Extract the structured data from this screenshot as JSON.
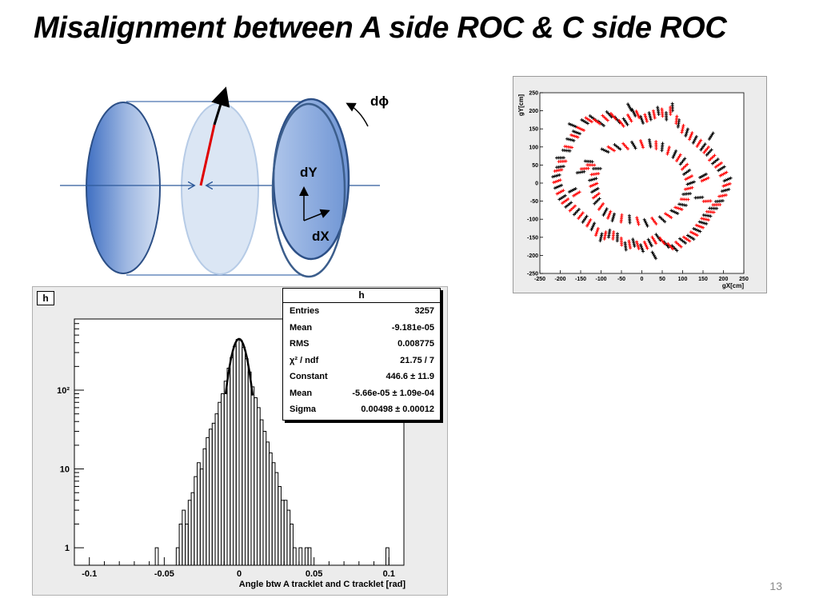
{
  "slide": {
    "title": "Misalignment between A side ROC & C side ROC",
    "page_number": "13"
  },
  "diagram": {
    "label_dphi": "dϕ",
    "label_dy": "dY",
    "label_dx": "dX"
  },
  "colors": {
    "ellipse_dark": "#5b84cc",
    "ellipse_light": "#dbe6f4",
    "outline": "#3c5e8c",
    "vector_red": "#e00000",
    "series_black": "#000000",
    "series_red": "#ff0000"
  },
  "histogram": {
    "name": "h",
    "xlabel": "Angle btw A tracklet and C tracklet [rad]",
    "log_y": true,
    "stats": {
      "title": "h",
      "rows": [
        {
          "label": "Entries",
          "value": "3257"
        },
        {
          "label": "Mean",
          "value": "-9.181e-05"
        },
        {
          "label": "RMS",
          "value": "0.008775"
        },
        {
          "label": "χ² / ndf",
          "value": "21.75 / 7"
        },
        {
          "label": "Constant",
          "value": "446.6 ± 11.9"
        },
        {
          "label": "Mean",
          "value": "-5.66e-05 ± 1.09e-04"
        },
        {
          "label": "Sigma",
          "value": "0.00498 ± 0.00012"
        }
      ]
    }
  },
  "chart_data": [
    {
      "type": "bar",
      "xlabel": "Angle btw A tracklet and C tracklet [rad]",
      "ylabel": "",
      "xlim": [
        -0.11,
        0.11
      ],
      "ylim": [
        0.6,
        800
      ],
      "log_y": true,
      "x_ticks": [
        -0.1,
        -0.05,
        0,
        0.05,
        0.1
      ],
      "x_tick_labels": [
        "-0.1",
        "-0.05",
        "0",
        "0.05",
        "0.1"
      ],
      "y_ticks": [
        1,
        10,
        100
      ],
      "y_tick_labels": [
        "1",
        "10",
        "10²"
      ],
      "bin_width": 0.002,
      "bins": [
        {
          "x": -0.055,
          "y": 1
        },
        {
          "x": -0.041,
          "y": 1
        },
        {
          "x": -0.039,
          "y": 2
        },
        {
          "x": -0.037,
          "y": 3
        },
        {
          "x": -0.035,
          "y": 2
        },
        {
          "x": -0.033,
          "y": 4
        },
        {
          "x": -0.031,
          "y": 5
        },
        {
          "x": -0.029,
          "y": 8
        },
        {
          "x": -0.027,
          "y": 12
        },
        {
          "x": -0.025,
          "y": 10
        },
        {
          "x": -0.023,
          "y": 18
        },
        {
          "x": -0.021,
          "y": 25
        },
        {
          "x": -0.019,
          "y": 32
        },
        {
          "x": -0.017,
          "y": 38
        },
        {
          "x": -0.015,
          "y": 50
        },
        {
          "x": -0.013,
          "y": 70
        },
        {
          "x": -0.011,
          "y": 90
        },
        {
          "x": -0.009,
          "y": 130
        },
        {
          "x": -0.007,
          "y": 190
        },
        {
          "x": -0.005,
          "y": 260
        },
        {
          "x": -0.003,
          "y": 360
        },
        {
          "x": -0.001,
          "y": 440
        },
        {
          "x": 0.001,
          "y": 430
        },
        {
          "x": 0.003,
          "y": 350
        },
        {
          "x": 0.005,
          "y": 250
        },
        {
          "x": 0.007,
          "y": 170
        },
        {
          "x": 0.009,
          "y": 110
        },
        {
          "x": 0.011,
          "y": 80
        },
        {
          "x": 0.013,
          "y": 60
        },
        {
          "x": 0.015,
          "y": 42
        },
        {
          "x": 0.017,
          "y": 30
        },
        {
          "x": 0.019,
          "y": 22
        },
        {
          "x": 0.021,
          "y": 16
        },
        {
          "x": 0.023,
          "y": 12
        },
        {
          "x": 0.025,
          "y": 9
        },
        {
          "x": 0.027,
          "y": 6
        },
        {
          "x": 0.029,
          "y": 4
        },
        {
          "x": 0.031,
          "y": 4
        },
        {
          "x": 0.033,
          "y": 3
        },
        {
          "x": 0.035,
          "y": 2
        },
        {
          "x": 0.037,
          "y": 1
        },
        {
          "x": 0.041,
          "y": 1
        },
        {
          "x": 0.045,
          "y": 1
        },
        {
          "x": 0.047,
          "y": 1
        },
        {
          "x": 0.099,
          "y": 1
        }
      ],
      "fit": {
        "type": "gaussian",
        "constant": 446.6,
        "mean": -5.66e-05,
        "sigma": 0.00498,
        "range": [
          -0.009,
          0.009
        ]
      }
    },
    {
      "type": "scatter",
      "xlabel": "gX[cm]",
      "ylabel": "gY[cm]",
      "xlim": [
        -250,
        250
      ],
      "ylim": [
        -250,
        250
      ],
      "x_ticks": [
        -250,
        -200,
        -150,
        -100,
        -50,
        0,
        50,
        100,
        150,
        200,
        250
      ],
      "y_ticks": [
        -250,
        -200,
        -150,
        -100,
        -50,
        0,
        50,
        100,
        150,
        200,
        250
      ],
      "series": [
        {
          "color": "#000000",
          "points": [
            [
              -200,
              70
            ],
            [
              -185,
              90
            ],
            [
              -175,
              120
            ],
            [
              -160,
              140
            ],
            [
              -140,
              170
            ],
            [
              -120,
              180
            ],
            [
              -100,
              165
            ],
            [
              -80,
              190
            ],
            [
              -60,
              175
            ],
            [
              -40,
              170
            ],
            [
              -20,
              195
            ],
            [
              0,
              175
            ],
            [
              20,
              185
            ],
            [
              40,
              200
            ],
            [
              60,
              185
            ],
            [
              75,
              210
            ],
            [
              90,
              165
            ],
            [
              110,
              140
            ],
            [
              130,
              120
            ],
            [
              150,
              100
            ],
            [
              165,
              85
            ],
            [
              180,
              60
            ],
            [
              195,
              40
            ],
            [
              210,
              10
            ],
            [
              205,
              -20
            ],
            [
              190,
              -50
            ],
            [
              175,
              -70
            ],
            [
              160,
              -90
            ],
            [
              150,
              -110
            ],
            [
              135,
              -130
            ],
            [
              120,
              -150
            ],
            [
              100,
              -160
            ],
            [
              80,
              -180
            ],
            [
              60,
              -170
            ],
            [
              40,
              -150
            ],
            [
              20,
              -165
            ],
            [
              0,
              -180
            ],
            [
              -20,
              -165
            ],
            [
              -40,
              -175
            ],
            [
              -60,
              -150
            ],
            [
              -80,
              -140
            ],
            [
              -100,
              -150
            ],
            [
              -120,
              -120
            ],
            [
              -140,
              -100
            ],
            [
              -160,
              -80
            ],
            [
              -180,
              -60
            ],
            [
              -195,
              -40
            ],
            [
              -205,
              -10
            ],
            [
              -210,
              20
            ],
            [
              -200,
              45
            ],
            [
              -130,
              60
            ],
            [
              -110,
              40
            ],
            [
              -120,
              10
            ],
            [
              -115,
              -20
            ],
            [
              -110,
              -50
            ],
            [
              -90,
              -80
            ],
            [
              -70,
              -95
            ],
            [
              -30,
              -100
            ],
            [
              10,
              -110
            ],
            [
              50,
              -100
            ],
            [
              80,
              -80
            ],
            [
              100,
              -60
            ],
            [
              110,
              -30
            ],
            [
              120,
              0
            ],
            [
              110,
              30
            ],
            [
              100,
              60
            ],
            [
              80,
              80
            ],
            [
              50,
              100
            ],
            [
              20,
              110
            ],
            [
              -20,
              105
            ],
            [
              -60,
              100
            ],
            [
              -90,
              90
            ],
            [
              -150,
              30
            ],
            [
              150,
              20
            ],
            [
              140,
              -40
            ],
            [
              -170,
              -20
            ],
            [
              170,
              130
            ],
            [
              -170,
              160
            ],
            [
              30,
              -200
            ],
            [
              -30,
              210
            ]
          ]
        },
        {
          "color": "#ff0000",
          "points": [
            [
              -195,
              60
            ],
            [
              -180,
              100
            ],
            [
              -165,
              130
            ],
            [
              -150,
              150
            ],
            [
              -130,
              175
            ],
            [
              -110,
              170
            ],
            [
              -90,
              180
            ],
            [
              -70,
              185
            ],
            [
              -50,
              165
            ],
            [
              -30,
              180
            ],
            [
              -10,
              190
            ],
            [
              10,
              180
            ],
            [
              30,
              190
            ],
            [
              50,
              195
            ],
            [
              70,
              200
            ],
            [
              85,
              175
            ],
            [
              100,
              150
            ],
            [
              120,
              130
            ],
            [
              140,
              110
            ],
            [
              158,
              92
            ],
            [
              172,
              70
            ],
            [
              188,
              50
            ],
            [
              200,
              25
            ],
            [
              208,
              -5
            ],
            [
              198,
              -35
            ],
            [
              183,
              -60
            ],
            [
              168,
              -80
            ],
            [
              155,
              -100
            ],
            [
              142,
              -120
            ],
            [
              128,
              -140
            ],
            [
              110,
              -155
            ],
            [
              90,
              -170
            ],
            [
              70,
              -175
            ],
            [
              50,
              -160
            ],
            [
              30,
              -158
            ],
            [
              10,
              -172
            ],
            [
              -10,
              -172
            ],
            [
              -30,
              -170
            ],
            [
              -50,
              -162
            ],
            [
              -70,
              -145
            ],
            [
              -90,
              -145
            ],
            [
              -110,
              -135
            ],
            [
              -130,
              -110
            ],
            [
              -150,
              -90
            ],
            [
              -170,
              -70
            ],
            [
              -188,
              -50
            ],
            [
              -200,
              -25
            ],
            [
              -208,
              5
            ],
            [
              -205,
              35
            ],
            [
              -125,
              50
            ],
            [
              -115,
              25
            ],
            [
              -118,
              -5
            ],
            [
              -112,
              -35
            ],
            [
              -100,
              -65
            ],
            [
              -80,
              -88
            ],
            [
              -50,
              -98
            ],
            [
              -10,
              -105
            ],
            [
              30,
              -105
            ],
            [
              65,
              -90
            ],
            [
              90,
              -70
            ],
            [
              105,
              -45
            ],
            [
              115,
              -15
            ],
            [
              115,
              15
            ],
            [
              105,
              45
            ],
            [
              90,
              70
            ],
            [
              65,
              90
            ],
            [
              35,
              105
            ],
            [
              0,
              108
            ],
            [
              -40,
              102
            ],
            [
              -75,
              95
            ],
            [
              -140,
              40
            ],
            [
              155,
              10
            ],
            [
              -160,
              -30
            ],
            [
              160,
              -50
            ]
          ]
        }
      ]
    }
  ]
}
